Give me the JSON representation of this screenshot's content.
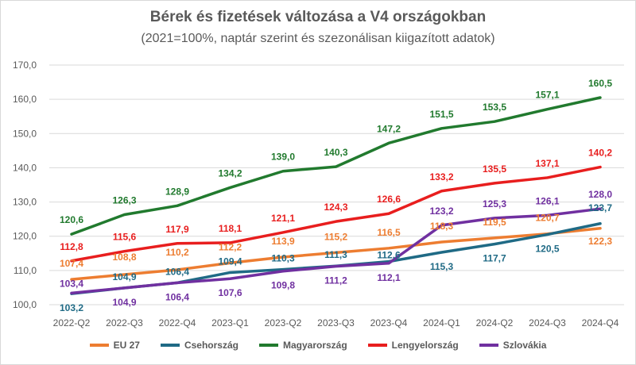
{
  "chart_data": {
    "type": "line",
    "title": "Bérek és fizetések változása a V4 országokban",
    "subtitle": "(2021=100%, naptár szerint és szezonálisan kiigazított adatok)",
    "xlabel": "",
    "ylabel": "",
    "ylim": [
      100,
      170
    ],
    "yticks": [
      "100,0",
      "110,0",
      "120,0",
      "130,0",
      "140,0",
      "150,0",
      "160,0",
      "170,0"
    ],
    "grid": true,
    "legend_position": "bottom",
    "categories": [
      "2022-Q2",
      "2022-Q3",
      "2022-Q4",
      "2023-Q1",
      "2023-Q2",
      "2023-Q3",
      "2023-Q4",
      "2024-Q1",
      "2024-Q2",
      "2024-Q3",
      "2024-Q4"
    ],
    "series": [
      {
        "name": "EU 27",
        "color": "#ED7D31",
        "values": [
          107.4,
          108.8,
          110.2,
          112.2,
          113.9,
          115.2,
          116.5,
          118.3,
          119.5,
          120.7,
          122.3
        ],
        "labels": [
          "107,4",
          "108,8",
          "110,2",
          "112,2",
          "113,9",
          "115,2",
          "116,5",
          "118,3",
          "119,5",
          "120,7",
          "122,3"
        ]
      },
      {
        "name": "Csehország",
        "color": "#1F6A85",
        "values": [
          103.2,
          104.9,
          106.4,
          109.4,
          110.3,
          111.3,
          112.6,
          115.3,
          117.7,
          120.5,
          123.7
        ],
        "labels": [
          "103,2",
          "104,9",
          "106,4",
          "109,4",
          "110,3",
          "111,3",
          "112,6",
          "115,3",
          "117,7",
          "120,5",
          "123,7"
        ]
      },
      {
        "name": "Magyarország",
        "color": "#217A2E",
        "values": [
          120.6,
          126.3,
          128.9,
          134.2,
          139.0,
          140.3,
          147.2,
          151.5,
          153.5,
          157.1,
          160.5
        ],
        "labels": [
          "120,6",
          "126,3",
          "128,9",
          "134,2",
          "139,0",
          "140,3",
          "147,2",
          "151,5",
          "153,5",
          "157,1",
          "160,5"
        ]
      },
      {
        "name": "Lengyelország",
        "color": "#E81E1E",
        "values": [
          112.8,
          115.6,
          117.9,
          118.1,
          121.1,
          124.3,
          126.6,
          133.2,
          135.5,
          137.1,
          140.2
        ],
        "labels": [
          "112,8",
          "115,6",
          "117,9",
          "118,1",
          "121,1",
          "124,3",
          "126,6",
          "133,2",
          "135,5",
          "137,1",
          "140,2"
        ]
      },
      {
        "name": "Szlovákia",
        "color": "#7030A0",
        "values": [
          103.4,
          104.9,
          106.4,
          107.6,
          109.8,
          111.2,
          112.1,
          123.2,
          125.3,
          126.1,
          128.0
        ],
        "labels": [
          "103,4",
          "104,9",
          "106,4",
          "107,6",
          "109,8",
          "111,2",
          "112,1",
          "123,2",
          "125,3",
          "126,1",
          "128,0"
        ]
      }
    ]
  }
}
